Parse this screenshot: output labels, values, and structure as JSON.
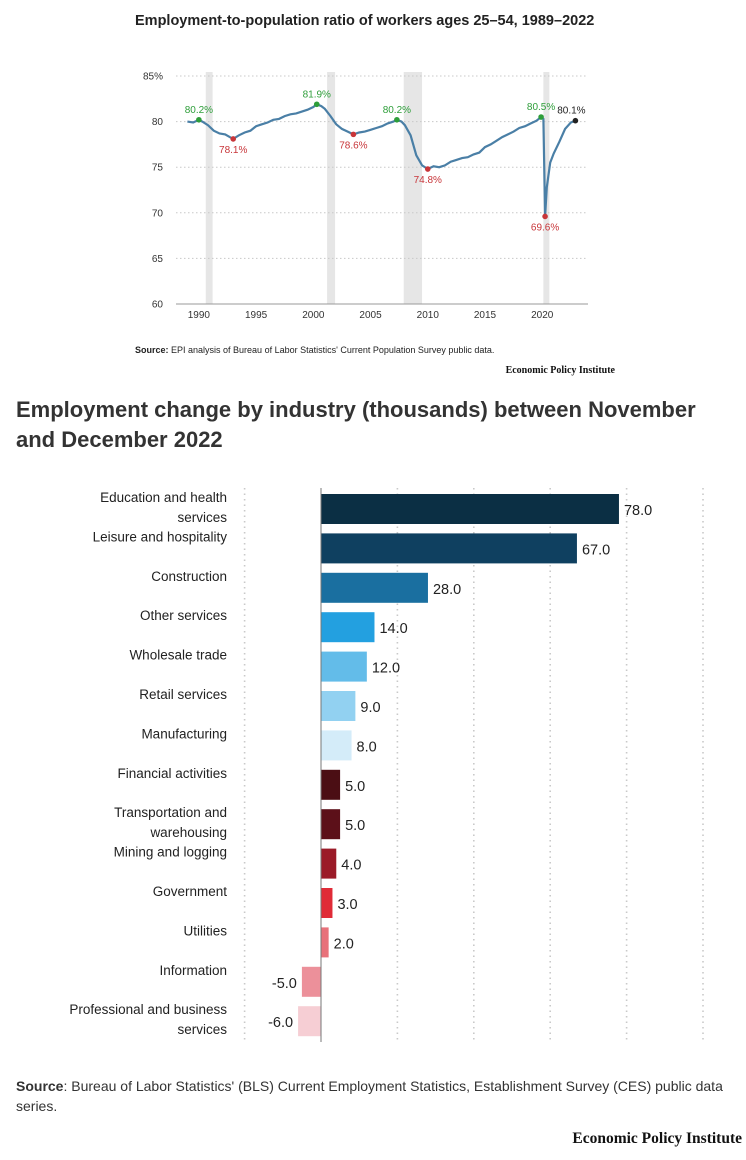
{
  "top": {
    "title": "Employment-to-population ratio of workers ages 25–54, 1989–2022",
    "source_label": "Source:",
    "source_text": " EPI analysis of Bureau of Labor Statistics' Current Population Survey public data.",
    "brand": "Economic Policy Institute"
  },
  "bottom": {
    "title": "Employment change by industry (thousands) between November and December 2022",
    "source_label": "Source",
    "source_text": ": Bureau of Labor Statistics' (BLS) Current Employment Statistics, Establishment Survey (CES) public data series.",
    "brand": "Economic Policy Institute"
  },
  "chart_data": [
    {
      "type": "line",
      "title": "Employment-to-population ratio of workers ages 25–54, 1989–2022",
      "ylim": [
        60,
        85
      ],
      "xlim": [
        1988,
        2024
      ],
      "y_ticks": [
        60,
        65,
        70,
        75,
        80,
        85
      ],
      "y_tick_labels": [
        "60",
        "65",
        "70",
        "75",
        "80",
        "85%"
      ],
      "x_ticks": [
        1990,
        1995,
        2000,
        2005,
        2010,
        2015,
        2020
      ],
      "grid": "horizontal dotted",
      "recessions": [
        [
          1990.6,
          1991.2
        ],
        [
          2001.2,
          2001.9
        ],
        [
          2007.9,
          2009.5
        ],
        [
          2020.1,
          2020.4
        ]
      ],
      "series": [
        {
          "x": [
            1989.0,
            1989.5,
            1990.0,
            1990.3,
            1990.8,
            1991.3,
            1991.8,
            1992.3,
            1992.7,
            1993.0,
            1993.5,
            1994.0,
            1994.5,
            1995.0,
            1995.5,
            1996.0,
            1996.5,
            1997.0,
            1997.5,
            1998.0,
            1998.5,
            1999.0,
            1999.5,
            2000.0,
            2000.3,
            2000.7,
            2001.0,
            2001.5,
            2002.0,
            2002.5,
            2003.0,
            2003.5,
            2004.0,
            2004.5,
            2005.0,
            2005.5,
            2006.0,
            2006.5,
            2007.0,
            2007.3,
            2007.7,
            2008.0,
            2008.5,
            2009.0,
            2009.5,
            2010.0,
            2010.5,
            2011.0,
            2011.5,
            2012.0,
            2012.5,
            2013.0,
            2013.5,
            2014.0,
            2014.5,
            2015.0,
            2015.5,
            2016.0,
            2016.5,
            2017.0,
            2017.5,
            2018.0,
            2018.5,
            2019.0,
            2019.5,
            2019.9,
            2020.1,
            2020.25,
            2020.4,
            2020.7,
            2021.0,
            2021.5,
            2022.0,
            2022.5,
            2022.9
          ],
          "y": [
            80.0,
            79.9,
            80.2,
            80.0,
            79.6,
            79.0,
            78.7,
            78.6,
            78.3,
            78.1,
            78.5,
            78.8,
            79.0,
            79.5,
            79.7,
            79.9,
            80.2,
            80.3,
            80.6,
            80.8,
            80.9,
            81.1,
            81.3,
            81.6,
            81.9,
            81.7,
            81.4,
            80.6,
            79.7,
            79.2,
            78.9,
            78.6,
            78.8,
            78.9,
            79.1,
            79.3,
            79.5,
            79.8,
            80.0,
            80.2,
            80.0,
            79.6,
            78.5,
            76.3,
            75.2,
            74.8,
            75.1,
            75.0,
            75.2,
            75.6,
            75.8,
            76.0,
            76.1,
            76.4,
            76.6,
            77.2,
            77.5,
            77.9,
            78.3,
            78.6,
            78.9,
            79.3,
            79.5,
            79.8,
            80.1,
            80.5,
            80.3,
            69.6,
            72.8,
            75.5,
            76.5,
            77.8,
            79.2,
            79.9,
            80.1
          ]
        }
      ],
      "annotations": [
        {
          "label": "80.2%",
          "x": 1990.0,
          "y": 80.2,
          "color": "#2e9e3a"
        },
        {
          "label": "78.1%",
          "x": 1993.0,
          "y": 78.1,
          "color": "#c8363a"
        },
        {
          "label": "81.9%",
          "x": 2000.3,
          "y": 81.9,
          "color": "#2e9e3a"
        },
        {
          "label": "78.6%",
          "x": 2003.5,
          "y": 78.6,
          "color": "#c8363a"
        },
        {
          "label": "80.2%",
          "x": 2007.3,
          "y": 80.2,
          "color": "#2e9e3a"
        },
        {
          "label": "74.8%",
          "x": 2010.0,
          "y": 74.8,
          "color": "#c8363a"
        },
        {
          "label": "80.5%",
          "x": 2019.9,
          "y": 80.5,
          "color": "#2e9e3a"
        },
        {
          "label": "69.6%",
          "x": 2020.25,
          "y": 69.6,
          "color": "#c8363a"
        },
        {
          "label": "80.1%",
          "x": 2022.9,
          "y": 80.1,
          "color": "#222222"
        }
      ],
      "line_color": "#4a7fa6"
    },
    {
      "type": "bar",
      "orientation": "horizontal",
      "title": "Employment change by industry (thousands) between November and December 2022",
      "categories": [
        "Education and health services",
        "Leisure and hospitality",
        "Construction",
        "Other services",
        "Wholesale trade",
        "Retail services",
        "Manufacturing",
        "Financial activities",
        "Transportation and warehousing",
        "Mining and logging",
        "Government",
        "Utilities",
        "Information",
        "Professional and business services"
      ],
      "values": [
        78.0,
        67.0,
        28.0,
        14.0,
        12.0,
        9.0,
        8.0,
        5.0,
        5.0,
        4.0,
        3.0,
        2.0,
        -5.0,
        -6.0
      ],
      "value_labels": [
        "78.0",
        "67.0",
        "28.0",
        "14.0",
        "12.0",
        "9.0",
        "8.0",
        "5.0",
        "5.0",
        "4.0",
        "3.0",
        "2.0",
        "-5.0",
        "-6.0"
      ],
      "colors": [
        "#0b2f44",
        "#0f4060",
        "#1a6fa0",
        "#23a0e0",
        "#63bce9",
        "#92d1f1",
        "#d4ecf9",
        "#4b0e14",
        "#5c1019",
        "#9b1b28",
        "#e02b37",
        "#e8717a",
        "#ec909a",
        "#f6ced4"
      ],
      "xlim": [
        -20,
        100
      ],
      "grid": "vertical dotted"
    }
  ]
}
